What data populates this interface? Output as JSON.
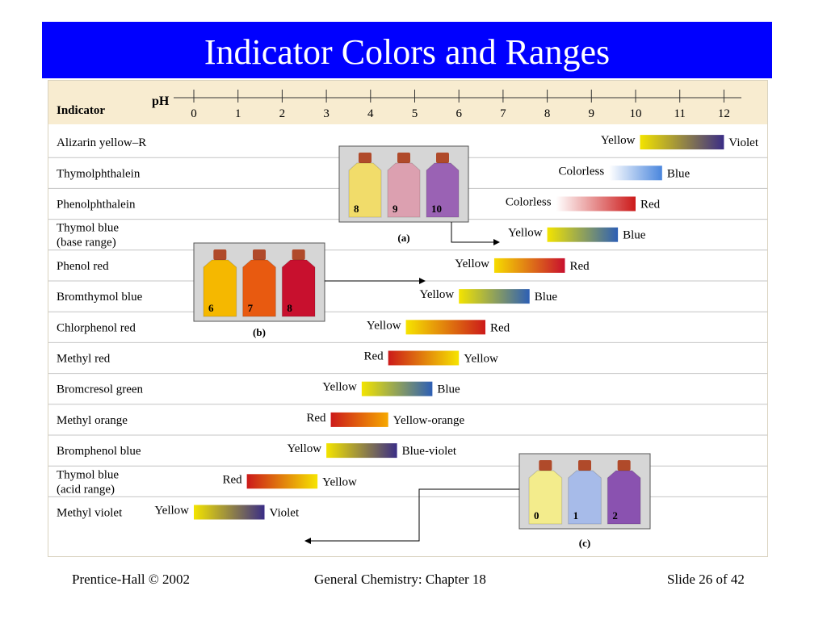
{
  "title": "Indicator Colors and Ranges",
  "header": {
    "indicator_label": "Indicator",
    "ph_label": "pH"
  },
  "ph_ticks": [
    "0",
    "1",
    "2",
    "3",
    "4",
    "5",
    "6",
    "7",
    "8",
    "9",
    "10",
    "11",
    "12"
  ],
  "rows": [
    {
      "name": [
        "Alizarin yellow–R"
      ],
      "range": [
        10.1,
        12.0
      ],
      "low": "Yellow",
      "high": "Violet",
      "colors": [
        "#f3e400",
        "#3a2d86"
      ]
    },
    {
      "name": [
        "Thymolphthalein"
      ],
      "range": [
        9.4,
        10.6
      ],
      "low": "Colorless",
      "high": "Blue",
      "colors": [
        "#ffffff",
        "#4a86dd"
      ]
    },
    {
      "name": [
        "Phenolphthalein"
      ],
      "range": [
        8.2,
        10.0
      ],
      "low": "Colorless",
      "high": "Red",
      "colors": [
        "#ffffff",
        "#cc1a1a"
      ]
    },
    {
      "name": [
        "Thymol blue",
        "(base range)"
      ],
      "range": [
        8.0,
        9.6
      ],
      "low": "Yellow",
      "high": "Blue",
      "colors": [
        "#f3e400",
        "#2d5fb5"
      ]
    },
    {
      "name": [
        "Phenol red"
      ],
      "range": [
        6.8,
        8.4
      ],
      "low": "Yellow",
      "high": "Red",
      "colors": [
        "#f6dc00",
        "#c8102e"
      ]
    },
    {
      "name": [
        "Bromthymol blue"
      ],
      "range": [
        6.0,
        7.6
      ],
      "low": "Yellow",
      "high": "Blue",
      "colors": [
        "#f3e400",
        "#2d5fb5"
      ]
    },
    {
      "name": [
        "Chlorphenol red"
      ],
      "range": [
        4.8,
        6.6
      ],
      "low": "Yellow",
      "high": "Red",
      "colors": [
        "#f6e400",
        "#cc1a1a"
      ]
    },
    {
      "name": [
        "Methyl red"
      ],
      "range": [
        4.4,
        6.0
      ],
      "low": "Red",
      "high": "Yellow",
      "colors": [
        "#cc1a1a",
        "#f6e400"
      ]
    },
    {
      "name": [
        "Bromcresol green"
      ],
      "range": [
        3.8,
        5.4
      ],
      "low": "Yellow",
      "high": "Blue",
      "colors": [
        "#f3e400",
        "#2d5fb5"
      ]
    },
    {
      "name": [
        "Methyl orange"
      ],
      "range": [
        3.1,
        4.4
      ],
      "low": "Red",
      "high": "Yellow-orange",
      "colors": [
        "#cc1a1a",
        "#f6a800"
      ]
    },
    {
      "name": [
        "Bromphenol blue"
      ],
      "range": [
        3.0,
        4.6
      ],
      "low": "Yellow",
      "high": "Blue-violet",
      "colors": [
        "#f3e400",
        "#3a2d86"
      ]
    },
    {
      "name": [
        "Thymol blue",
        "(acid range)"
      ],
      "range": [
        1.2,
        2.8
      ],
      "low": "Red",
      "high": "Yellow",
      "colors": [
        "#cc1a1a",
        "#f6e400"
      ]
    },
    {
      "name": [
        "Methyl violet"
      ],
      "range": [
        0.0,
        1.6
      ],
      "low": "Yellow",
      "high": "Violet",
      "colors": [
        "#f3e400",
        "#3a2d86"
      ]
    }
  ],
  "photos": {
    "a": {
      "caption": "(a)",
      "labels": [
        "8",
        "9",
        "10"
      ],
      "colors": [
        "#f1dc6a",
        "#dca0b0",
        "#9a62b4"
      ]
    },
    "b": {
      "caption": "(b)",
      "labels": [
        "6",
        "7",
        "8"
      ],
      "colors": [
        "#f5b800",
        "#e85a10",
        "#c8102e"
      ]
    },
    "c": {
      "caption": "(c)",
      "labels": [
        "0",
        "1",
        "2"
      ],
      "colors": [
        "#f3ec8c",
        "#a7bbe9",
        "#8a52b0"
      ]
    }
  },
  "footer": {
    "left": "Prentice-Hall © 2002",
    "center": "General Chemistry: Chapter 18",
    "right": "Slide 26 of 42"
  }
}
